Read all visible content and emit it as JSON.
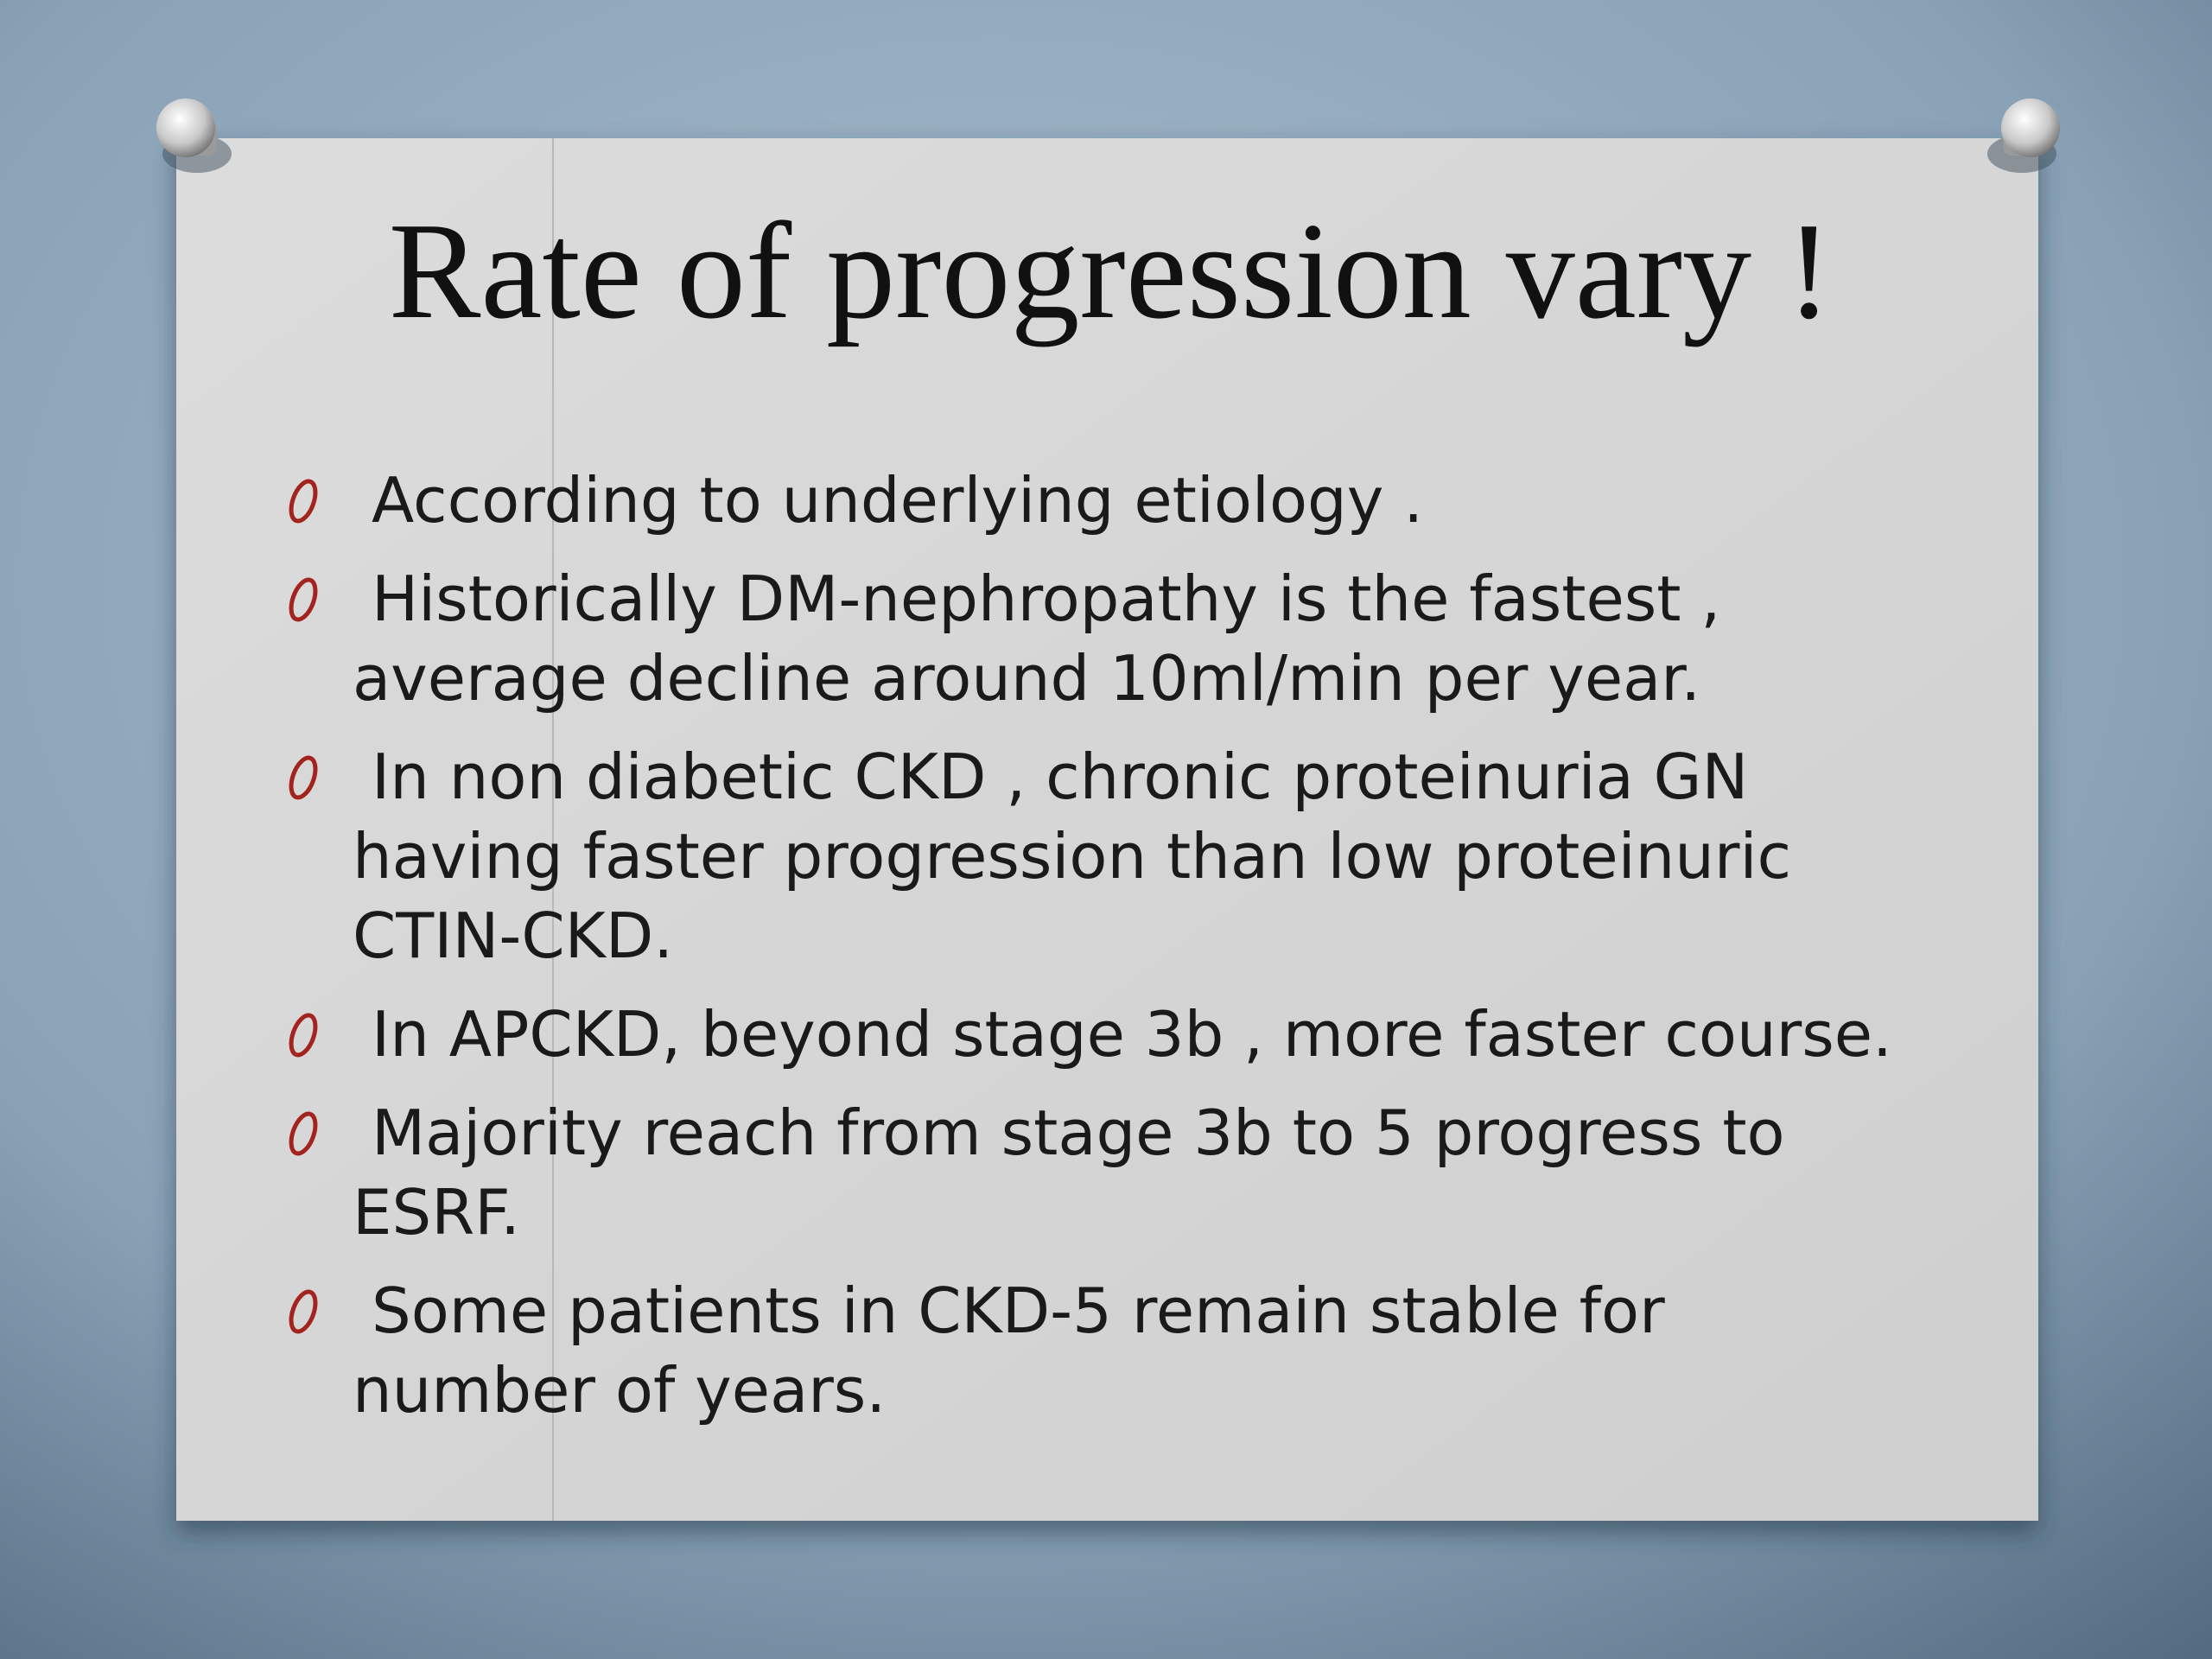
{
  "slide": {
    "title": "Rate of progression vary !",
    "bullets": [
      {
        "lines": [
          "According to underlying etiology ."
        ]
      },
      {
        "lines": [
          "Historically DM-nephropathy is the fastest ,",
          "average decline around 10ml/min per year."
        ]
      },
      {
        "lines": [
          "In non diabetic CKD , chronic proteinuria GN",
          "having faster progression than low proteinuric",
          "CTIN-CKD."
        ]
      },
      {
        "lines": [
          "In APCKD, beyond stage 3b , more faster course."
        ]
      },
      {
        "lines": [
          "Majority reach from stage 3b to 5 progress to",
          "ESRF."
        ]
      },
      {
        "lines": [
          "Some patients in CKD-5 remain stable for",
          "number of years."
        ]
      }
    ]
  }
}
